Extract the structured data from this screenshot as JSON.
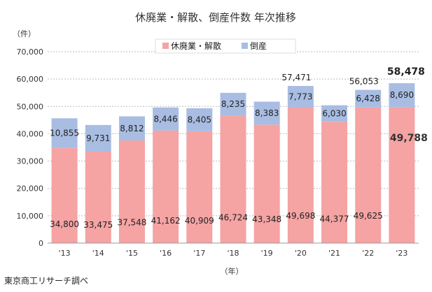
{
  "chart_data": {
    "type": "bar",
    "stacked": true,
    "title": "休廃業・解散、倒産件数 年次推移",
    "ylabel": "（件）",
    "xlabel": "（年）",
    "source": "東京商工リサーチ調べ",
    "categories": [
      "'13",
      "'14",
      "'15",
      "'16",
      "'17",
      "'18",
      "'19",
      "'20",
      "'21",
      "'22",
      "'23"
    ],
    "ylim": [
      0,
      70000
    ],
    "yticks": [
      "0",
      "10,000",
      "20,000",
      "30,000",
      "40,000",
      "50,000",
      "60,000",
      "70,000"
    ],
    "ytick_values": [
      0,
      10000,
      20000,
      30000,
      40000,
      50000,
      60000,
      70000
    ],
    "grid": true,
    "legend_position": "top-center",
    "series": [
      {
        "name": "休廃業・解散",
        "color": "#f5a3a3",
        "values": [
          34800,
          33475,
          37548,
          41162,
          40909,
          46724,
          43348,
          49698,
          44377,
          49625,
          49788
        ],
        "labels": [
          "34,800",
          "33,475",
          "37,548",
          "41,162",
          "40,909",
          "46,724",
          "43,348",
          "49,698",
          "44,377",
          "49,625",
          "49,788"
        ]
      },
      {
        "name": "倒産",
        "color": "#a9bde3",
        "values": [
          10855,
          9731,
          8812,
          8446,
          8405,
          8235,
          8383,
          7773,
          6030,
          6428,
          8690
        ],
        "labels": [
          "10,855",
          "9,731",
          "8,812",
          "8,446",
          "8,405",
          "8,235",
          "8,383",
          "7,773",
          "6,030",
          "6,428",
          "8,690"
        ]
      }
    ],
    "totals": [
      {
        "index": 7,
        "label": "57,471"
      },
      {
        "index": 9,
        "label": "56,053"
      },
      {
        "index": 10,
        "label": "58,478"
      }
    ]
  }
}
